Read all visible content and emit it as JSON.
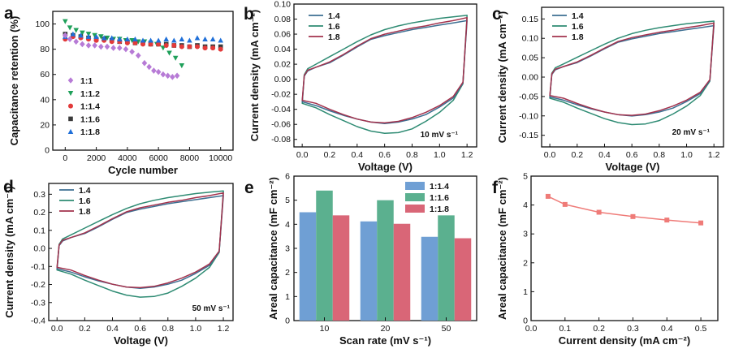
{
  "colors": {
    "retention": {
      "1:1": "#b77bd6",
      "1:1.2": "#1fa05a",
      "1:1.4": "#e23a3a",
      "1:1.6": "#3a3a3a",
      "1:1.8": "#1f6fd8"
    },
    "cv": {
      "1.4": "#3d6f92",
      "1.6": "#2e8b73",
      "1.8": "#a3324d"
    },
    "bars": {
      "1:1.4": "#6f9fd4",
      "1:1.6": "#5bb08f",
      "1:1.8": "#d96677"
    },
    "line_f": "#ef7b78"
  },
  "chart_data": [
    {
      "panel": "a",
      "type": "scatter",
      "xlabel": "Cycle number",
      "ylabel": "Capacitance retention (%)",
      "xlim": [
        -800,
        10800
      ],
      "ylim": [
        0,
        110
      ],
      "xticks": [
        "0",
        "2000",
        "4000",
        "6000",
        "8000",
        "10000"
      ],
      "yticks": [
        "0",
        "20",
        "40",
        "60",
        "80",
        "100"
      ],
      "legend": [
        "1:1",
        "1:1.2",
        "1:1.4",
        "1:1.6",
        "1:1.8"
      ],
      "series": [
        {
          "name": "1:1",
          "marker": "diamond",
          "x": [
            0,
            300,
            700,
            1100,
            1500,
            1900,
            2300,
            2700,
            3100,
            3500,
            3900,
            4300,
            4700,
            5100,
            5400,
            5700,
            6000,
            6300,
            6600,
            6900,
            7200
          ],
          "y": [
            91,
            88,
            86,
            84,
            83,
            83,
            82,
            82,
            81,
            81,
            80,
            78,
            75,
            69,
            66,
            63,
            62,
            60,
            59,
            58,
            59
          ]
        },
        {
          "name": "1:1.2",
          "marker": "triangle-down",
          "x": [
            0,
            300,
            700,
            1100,
            1500,
            1900,
            2300,
            2700,
            3100,
            3500,
            3900,
            4300,
            4700,
            5100,
            5500,
            5900,
            6300,
            6700,
            7100,
            7500
          ],
          "y": [
            102,
            97,
            95,
            93,
            92,
            91,
            90,
            89,
            88,
            88,
            87,
            87,
            86,
            86,
            85,
            84,
            81,
            77,
            73,
            67
          ]
        },
        {
          "name": "1:1.4",
          "marker": "circle",
          "x": [
            0,
            500,
            1000,
            1500,
            2000,
            2500,
            3000,
            3500,
            4000,
            4500,
            5000,
            5500,
            6000,
            6500,
            7000,
            7500,
            8000,
            8500,
            9000,
            9500,
            10000
          ],
          "y": [
            88,
            90,
            89,
            88,
            87,
            87,
            86,
            86,
            85,
            85,
            84,
            84,
            84,
            83,
            83,
            82,
            82,
            82,
            81,
            81,
            80
          ]
        },
        {
          "name": "1:1.6",
          "marker": "square",
          "x": [
            0,
            500,
            1000,
            1500,
            2000,
            2500,
            3000,
            3500,
            4000,
            4500,
            5000,
            5500,
            6000,
            6500,
            7000,
            7500,
            8000,
            8500,
            9000,
            9500,
            10000
          ],
          "y": [
            92,
            91,
            90,
            89,
            88,
            88,
            87,
            86,
            86,
            85,
            85,
            84,
            84,
            84,
            83,
            83,
            82,
            83,
            82,
            82,
            82
          ]
        },
        {
          "name": "1:1.8",
          "marker": "triangle-up",
          "x": [
            0,
            500,
            1000,
            1500,
            2000,
            2500,
            3000,
            3500,
            4000,
            4500,
            5000,
            5500,
            6000,
            6500,
            7000,
            7500,
            8000,
            8500,
            9000,
            9500,
            10000
          ],
          "y": [
            90,
            92,
            91,
            90,
            90,
            89,
            89,
            88,
            88,
            88,
            87,
            87,
            87,
            88,
            87,
            88,
            87,
            89,
            88,
            88,
            87
          ]
        }
      ]
    },
    {
      "panel": "b",
      "type": "line",
      "xlabel": "Voltage (V)",
      "ylabel": "Current density (mA cm⁻²)",
      "xlim": [
        -0.06,
        1.27
      ],
      "ylim": [
        -0.09,
        0.1
      ],
      "xticks": [
        "0.0",
        "0.2",
        "0.4",
        "0.6",
        "0.8",
        "1.0",
        "1.2"
      ],
      "yticks": [
        "-0.08",
        "-0.06",
        "-0.04",
        "-0.02",
        "0.00",
        "0.02",
        "0.04",
        "0.06",
        "0.08",
        "0.10"
      ],
      "annotation": "10 mV s⁻¹",
      "scale": 1,
      "series": [
        {
          "name": "1.4",
          "upper": [
            [
              0,
              -0.03
            ],
            [
              0.015,
              0.004
            ],
            [
              0.04,
              0.011
            ],
            [
              0.1,
              0.016
            ],
            [
              0.2,
              0.022
            ],
            [
              0.3,
              0.032
            ],
            [
              0.4,
              0.043
            ],
            [
              0.5,
              0.053
            ],
            [
              0.6,
              0.058
            ],
            [
              0.7,
              0.062
            ],
            [
              0.8,
              0.066
            ],
            [
              0.9,
              0.069
            ],
            [
              1.0,
              0.072
            ],
            [
              1.1,
              0.075
            ],
            [
              1.2,
              0.078
            ]
          ],
          "lower": [
            [
              0,
              -0.03
            ],
            [
              0.1,
              -0.035
            ],
            [
              0.2,
              -0.042
            ],
            [
              0.3,
              -0.048
            ],
            [
              0.4,
              -0.053
            ],
            [
              0.5,
              -0.057
            ],
            [
              0.6,
              -0.059
            ],
            [
              0.7,
              -0.057
            ],
            [
              0.8,
              -0.053
            ],
            [
              0.9,
              -0.047
            ],
            [
              1.0,
              -0.037
            ],
            [
              1.1,
              -0.025
            ],
            [
              1.17,
              -0.005
            ],
            [
              1.2,
              0.078
            ]
          ]
        },
        {
          "name": "1.6",
          "upper": [
            [
              0,
              -0.032
            ],
            [
              0.015,
              0.006
            ],
            [
              0.04,
              0.014
            ],
            [
              0.1,
              0.02
            ],
            [
              0.2,
              0.03
            ],
            [
              0.3,
              0.04
            ],
            [
              0.4,
              0.05
            ],
            [
              0.5,
              0.059
            ],
            [
              0.6,
              0.066
            ],
            [
              0.7,
              0.071
            ],
            [
              0.8,
              0.075
            ],
            [
              0.9,
              0.078
            ],
            [
              1.0,
              0.081
            ],
            [
              1.1,
              0.083
            ],
            [
              1.2,
              0.085
            ]
          ],
          "lower": [
            [
              0,
              -0.032
            ],
            [
              0.1,
              -0.038
            ],
            [
              0.2,
              -0.047
            ],
            [
              0.3,
              -0.055
            ],
            [
              0.4,
              -0.063
            ],
            [
              0.5,
              -0.069
            ],
            [
              0.6,
              -0.072
            ],
            [
              0.7,
              -0.071
            ],
            [
              0.8,
              -0.066
            ],
            [
              0.9,
              -0.056
            ],
            [
              1.0,
              -0.044
            ],
            [
              1.1,
              -0.028
            ],
            [
              1.17,
              -0.006
            ],
            [
              1.2,
              0.085
            ]
          ]
        },
        {
          "name": "1.8",
          "upper": [
            [
              0,
              -0.028
            ],
            [
              0.015,
              0.005
            ],
            [
              0.04,
              0.012
            ],
            [
              0.1,
              0.016
            ],
            [
              0.2,
              0.023
            ],
            [
              0.3,
              0.033
            ],
            [
              0.4,
              0.044
            ],
            [
              0.5,
              0.054
            ],
            [
              0.6,
              0.06
            ],
            [
              0.7,
              0.064
            ],
            [
              0.8,
              0.068
            ],
            [
              0.9,
              0.071
            ],
            [
              1.0,
              0.075
            ],
            [
              1.1,
              0.078
            ],
            [
              1.2,
              0.082
            ]
          ],
          "lower": [
            [
              0,
              -0.028
            ],
            [
              0.1,
              -0.032
            ],
            [
              0.2,
              -0.04
            ],
            [
              0.3,
              -0.047
            ],
            [
              0.4,
              -0.053
            ],
            [
              0.5,
              -0.057
            ],
            [
              0.6,
              -0.058
            ],
            [
              0.7,
              -0.056
            ],
            [
              0.8,
              -0.051
            ],
            [
              0.9,
              -0.044
            ],
            [
              1.0,
              -0.035
            ],
            [
              1.1,
              -0.023
            ],
            [
              1.17,
              -0.004
            ],
            [
              1.2,
              0.082
            ]
          ]
        }
      ]
    },
    {
      "panel": "c",
      "type": "line",
      "xlabel": "Voltage (V)",
      "ylabel": "Current density (mA cm⁻²)",
      "xlim": [
        -0.06,
        1.27
      ],
      "ylim": [
        -0.18,
        0.18
      ],
      "xticks": [
        "0.0",
        "0.2",
        "0.4",
        "0.6",
        "0.8",
        "1.0",
        "1.2"
      ],
      "yticks": [
        "-0.15",
        "-0.10",
        "-0.05",
        "0.00",
        "0.05",
        "0.10",
        "0.15"
      ],
      "annotation": "20 mV s⁻¹",
      "scale": 1.7,
      "legend": [
        "1.4",
        "1.6",
        "1.8"
      ]
    },
    {
      "panel": "d",
      "type": "line",
      "xlabel": "Voltage (V)",
      "ylabel": "Current density (mA cm⁻²)",
      "xlim": [
        -0.06,
        1.27
      ],
      "ylim": [
        -0.4,
        0.36
      ],
      "xticks": [
        "0.0",
        "0.2",
        "0.4",
        "0.6",
        "0.8",
        "1.0",
        "1.2"
      ],
      "yticks": [
        "-0.4",
        "-0.3",
        "-0.2",
        "-0.1",
        "0.0",
        "0.1",
        "0.2",
        "0.3"
      ],
      "annotation": "50 mV s⁻¹",
      "scale": 3.75,
      "legend": [
        "1.4",
        "1.6",
        "1.8"
      ]
    },
    {
      "panel": "e",
      "type": "bar",
      "xlabel": "Scan rate (mV s⁻¹)",
      "ylabel": "Areal capacitance (mF cm⁻²)",
      "categories": [
        "10",
        "20",
        "50"
      ],
      "ylim": [
        0,
        6
      ],
      "yticks": [
        "0",
        "1",
        "2",
        "3",
        "4",
        "5",
        "6"
      ],
      "series": [
        {
          "name": "1:1.4",
          "values": [
            4.5,
            4.12,
            3.48
          ]
        },
        {
          "name": "1:1.6",
          "values": [
            5.4,
            5.0,
            4.37
          ]
        },
        {
          "name": "1:1.8",
          "values": [
            4.37,
            4.02,
            3.42
          ]
        }
      ]
    },
    {
      "panel": "f",
      "type": "line",
      "xlabel": "Current density (mA cm⁻²)",
      "ylabel": "Areal capacitance (mF cm⁻²)",
      "xlim": [
        0,
        0.55
      ],
      "ylim": [
        0,
        5
      ],
      "xticks": [
        "0.0",
        "0.1",
        "0.2",
        "0.3",
        "0.4",
        "0.5"
      ],
      "yticks": [
        "0",
        "1",
        "2",
        "3",
        "4",
        "5"
      ],
      "x": [
        0.05,
        0.1,
        0.2,
        0.3,
        0.4,
        0.5
      ],
      "y": [
        4.3,
        4.02,
        3.75,
        3.6,
        3.48,
        3.38
      ]
    }
  ],
  "panel_labels": [
    "a",
    "b",
    "c",
    "d",
    "e",
    "f"
  ]
}
